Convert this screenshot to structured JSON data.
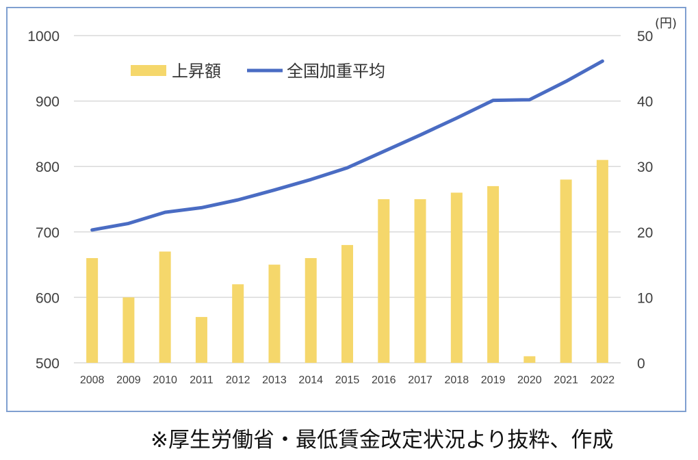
{
  "chart_data": {
    "type": "bar",
    "categories": [
      "2008",
      "2009",
      "2010",
      "2011",
      "2012",
      "2013",
      "2014",
      "2015",
      "2016",
      "2017",
      "2018",
      "2019",
      "2020",
      "2021",
      "2022"
    ],
    "series": [
      {
        "name": "上昇額",
        "type": "bar",
        "axis": "right",
        "color": "#f5d76b",
        "values": [
          16,
          10,
          17,
          7,
          12,
          15,
          16,
          18,
          25,
          25,
          26,
          27,
          1,
          28,
          31
        ]
      },
      {
        "name": "全国加重平均",
        "type": "line",
        "axis": "left",
        "color": "#4a6cc3",
        "values": [
          703,
          713,
          730,
          737,
          749,
          764,
          780,
          798,
          823,
          848,
          874,
          901,
          902,
          930,
          961
        ]
      }
    ],
    "y_left": {
      "ticks": [
        "500",
        "600",
        "700",
        "800",
        "900",
        "1000"
      ],
      "lim": [
        500,
        1000
      ]
    },
    "y_right": {
      "ticks": [
        "0",
        "10",
        "20",
        "30",
        "40",
        "50"
      ],
      "lim": [
        0,
        50
      ],
      "unit": "(円)"
    },
    "legend_position": "top-left",
    "grid": true
  },
  "source_note": "※厚生労働省・最低賃金改定状況より抜粋、作成"
}
